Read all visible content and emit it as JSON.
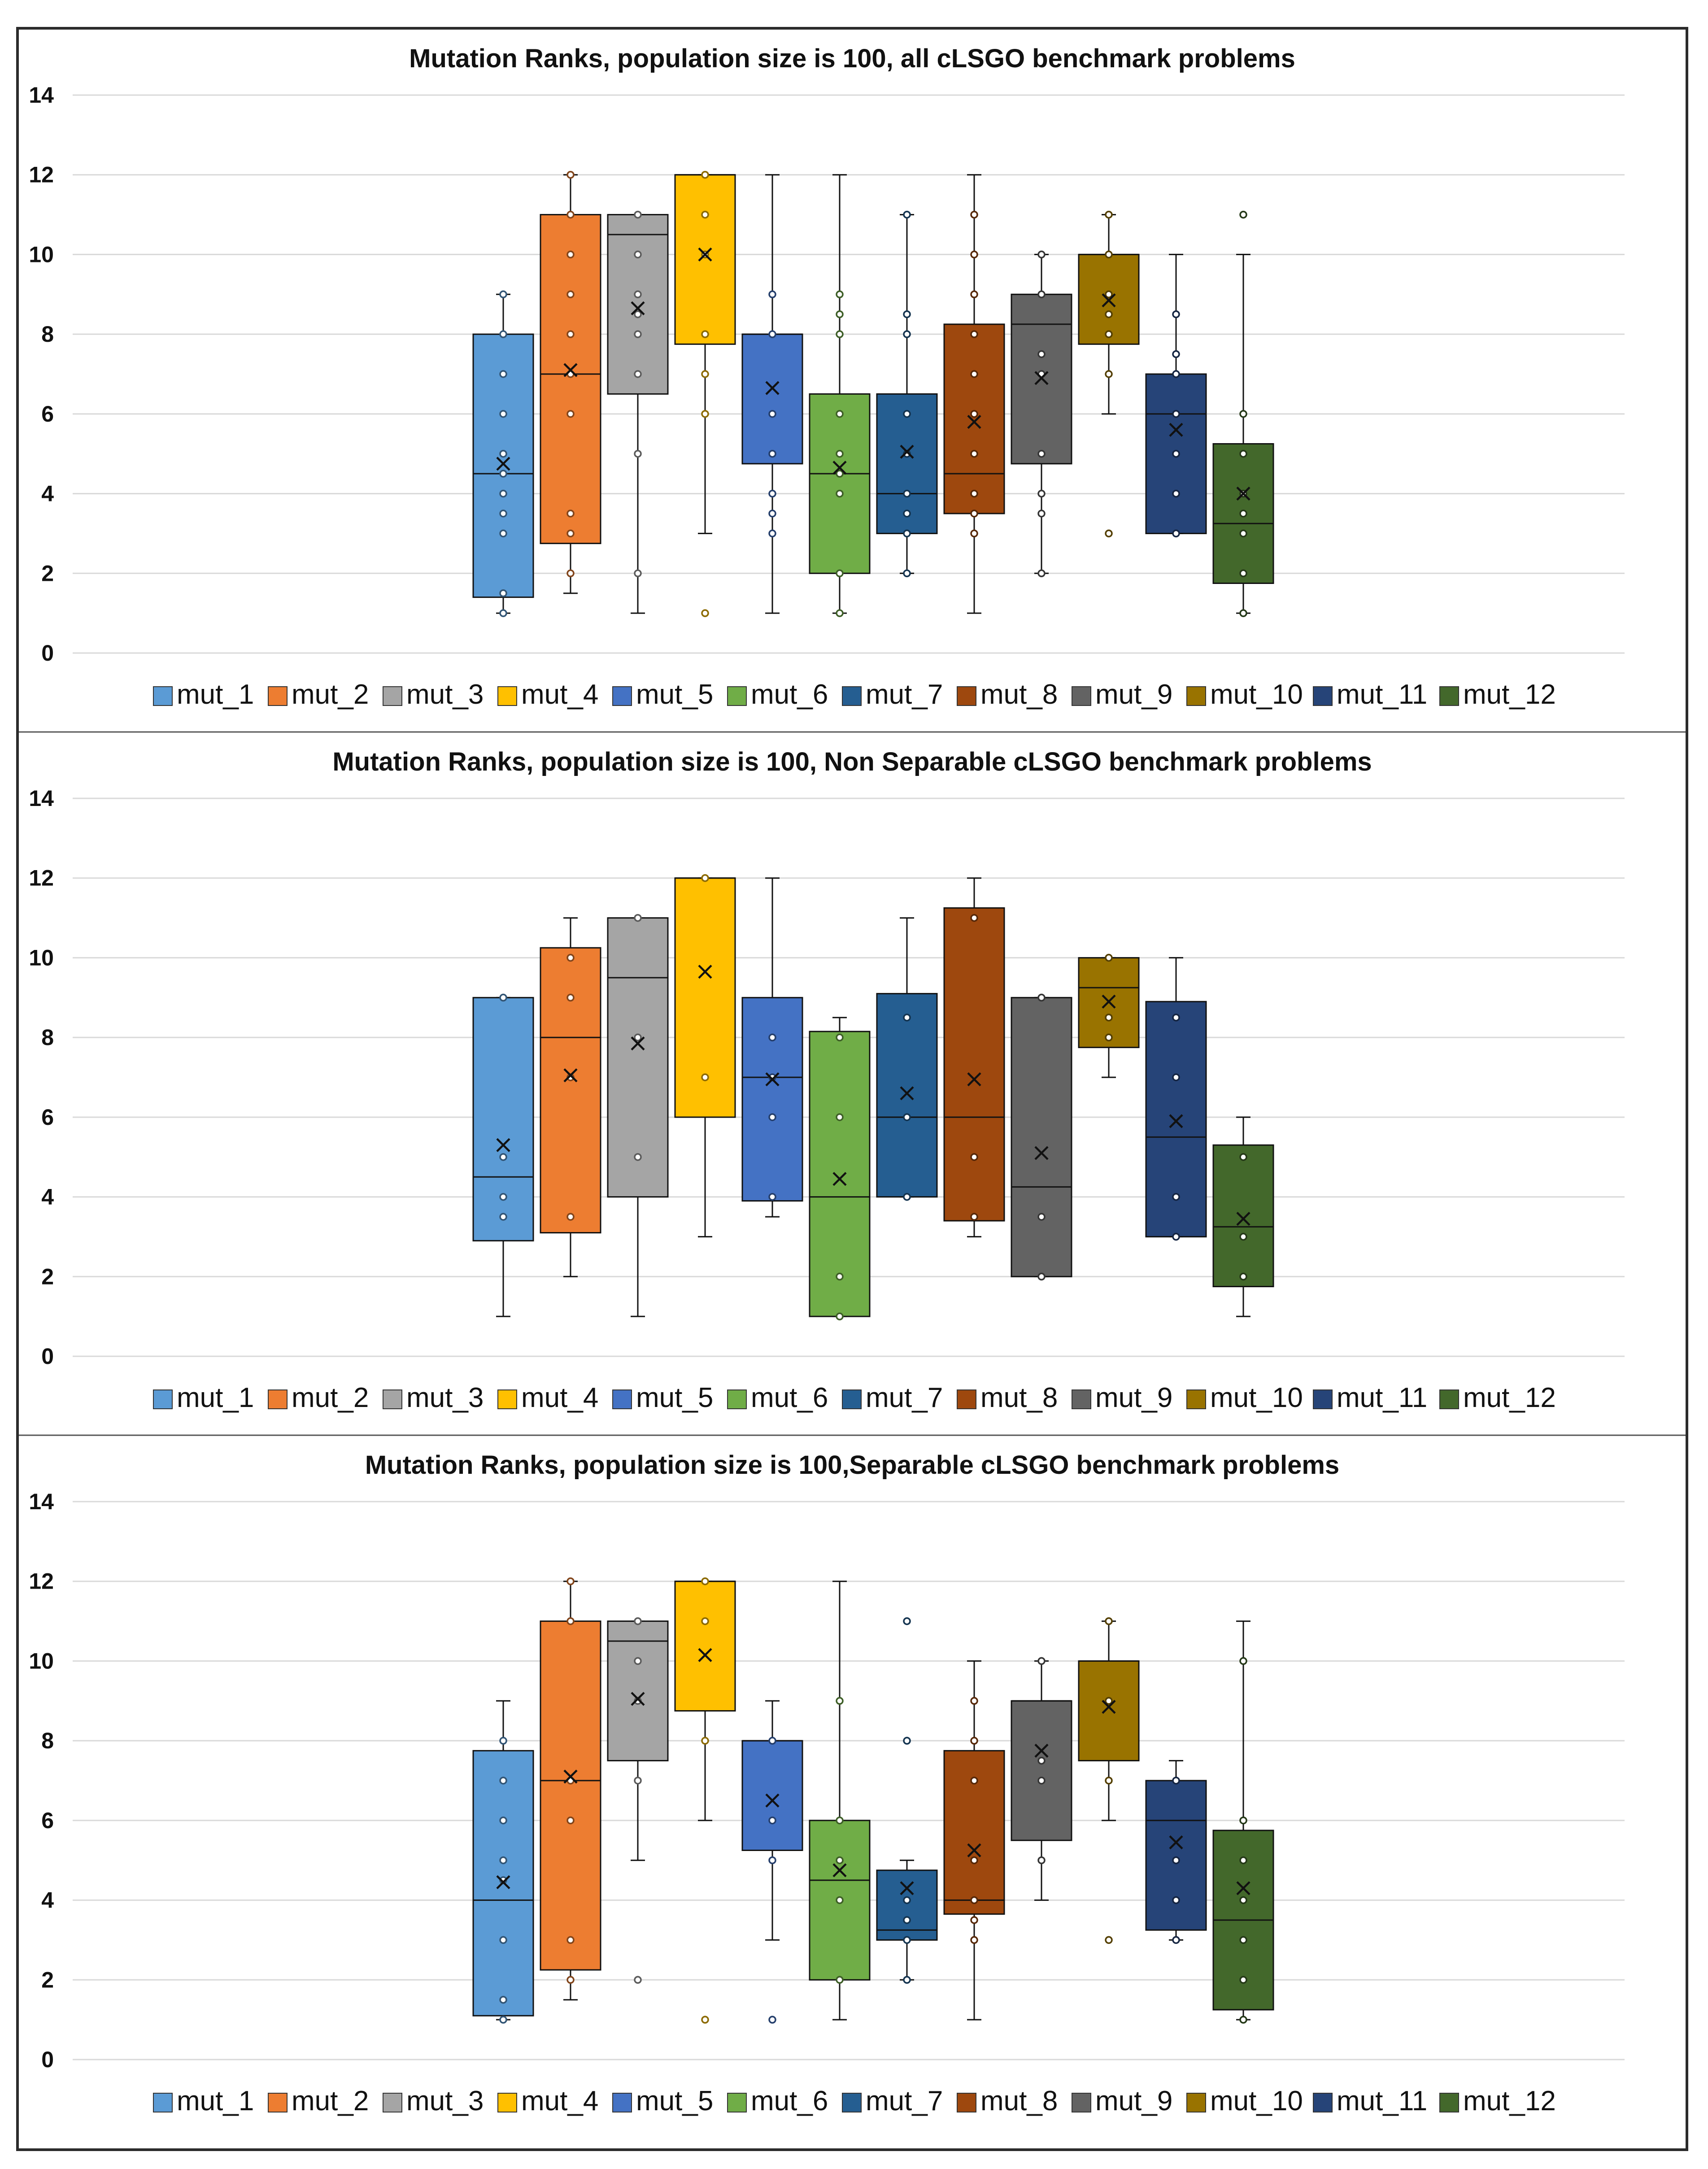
{
  "chart_data": [
    {
      "type": "box",
      "title": "Mutation Ranks, population size is 100, all cLSGO benchmark problems",
      "ylim": [
        0,
        14
      ],
      "yticks": [
        0,
        2,
        4,
        6,
        8,
        10,
        12,
        14
      ],
      "categories": [
        "mut_1",
        "mut_2",
        "mut_3",
        "mut_4",
        "mut_5",
        "mut_6",
        "mut_7",
        "mut_8",
        "mut_9",
        "mut_10",
        "mut_11",
        "mut_12"
      ],
      "series": [
        {
          "name": "mut_1",
          "q1": 1.4,
          "median": 4.5,
          "q3": 8,
          "whisker_low": 1,
          "whisker_high": 9,
          "mean": 4.75,
          "points": [
            1,
            1.5,
            3,
            3.5,
            4,
            4.5,
            5,
            6,
            7,
            8,
            9
          ]
        },
        {
          "name": "mut_2",
          "q1": 2.75,
          "median": 7,
          "q3": 11,
          "whisker_low": 1.5,
          "whisker_high": 12,
          "mean": 7.1,
          "points": [
            2,
            3,
            3.5,
            6,
            7,
            8,
            9,
            10,
            11,
            12
          ]
        },
        {
          "name": "mut_3",
          "q1": 6.5,
          "median": 10.5,
          "q3": 11,
          "whisker_low": 1,
          "whisker_high": 11,
          "mean": 8.65,
          "points": [
            2,
            5,
            7,
            8,
            8.5,
            9,
            10,
            11
          ]
        },
        {
          "name": "mut_4",
          "q1": 7.75,
          "median": 12,
          "q3": 12,
          "whisker_low": 3,
          "whisker_high": 12,
          "mean": 10,
          "points": [
            1,
            6,
            7,
            8,
            10,
            11,
            12
          ]
        },
        {
          "name": "mut_5",
          "q1": 4.75,
          "median": 8,
          "q3": 8,
          "whisker_low": 1,
          "whisker_high": 12,
          "mean": 6.65,
          "points": [
            3,
            3.5,
            4,
            5,
            6,
            8,
            9
          ]
        },
        {
          "name": "mut_6",
          "q1": 2,
          "median": 4.5,
          "q3": 6.5,
          "whisker_low": 1,
          "whisker_high": 12,
          "mean": 4.65,
          "points": [
            1,
            2,
            4,
            4.5,
            5,
            6,
            8,
            8.5,
            9
          ]
        },
        {
          "name": "mut_7",
          "q1": 3,
          "median": 4,
          "q3": 6.5,
          "whisker_low": 2,
          "whisker_high": 11,
          "mean": 5.05,
          "points": [
            2,
            3,
            3.5,
            4,
            5,
            6,
            8,
            8.5,
            11
          ]
        },
        {
          "name": "mut_8",
          "q1": 3.5,
          "median": 4.5,
          "q3": 8.25,
          "whisker_low": 1,
          "whisker_high": 12,
          "mean": 5.8,
          "points": [
            3,
            3.5,
            4,
            5,
            6,
            7,
            8,
            9,
            10,
            11
          ]
        },
        {
          "name": "mut_9",
          "q1": 4.75,
          "median": 8.25,
          "q3": 9,
          "whisker_low": 2,
          "whisker_high": 10,
          "mean": 6.9,
          "points": [
            2,
            3.5,
            4,
            5,
            7,
            7.5,
            9,
            10
          ]
        },
        {
          "name": "mut_10",
          "q1": 7.75,
          "median": 10,
          "q3": 10,
          "whisker_low": 6,
          "whisker_high": 11,
          "mean": 8.85,
          "points": [
            3,
            7,
            8,
            8.5,
            9,
            10,
            11
          ]
        },
        {
          "name": "mut_11",
          "q1": 3,
          "median": 6,
          "q3": 7,
          "whisker_low": 3,
          "whisker_high": 10,
          "mean": 5.6,
          "points": [
            3,
            4,
            5,
            6,
            7,
            7.5,
            8.5
          ]
        },
        {
          "name": "mut_12",
          "q1": 1.75,
          "median": 3.25,
          "q3": 5.25,
          "whisker_low": 1,
          "whisker_high": 10,
          "mean": 4,
          "points": [
            1,
            2,
            3,
            3.5,
            4,
            5,
            6,
            11
          ]
        }
      ]
    },
    {
      "type": "box",
      "title": "Mutation Ranks, population size is 100, Non Separable cLSGO benchmark problems",
      "ylim": [
        0,
        14
      ],
      "yticks": [
        0,
        2,
        4,
        6,
        8,
        10,
        12,
        14
      ],
      "categories": [
        "mut_1",
        "mut_2",
        "mut_3",
        "mut_4",
        "mut_5",
        "mut_6",
        "mut_7",
        "mut_8",
        "mut_9",
        "mut_10",
        "mut_11",
        "mut_12"
      ],
      "series": [
        {
          "name": "mut_1",
          "q1": 2.9,
          "median": 4.5,
          "q3": 9,
          "whisker_low": 1,
          "whisker_high": 9,
          "mean": 5.3,
          "points": [
            3.5,
            4,
            5,
            9
          ]
        },
        {
          "name": "mut_2",
          "q1": 3.1,
          "median": 8,
          "q3": 10.25,
          "whisker_low": 2,
          "whisker_high": 11,
          "mean": 7.05,
          "points": [
            3.5,
            7,
            9,
            10
          ]
        },
        {
          "name": "mut_3",
          "q1": 4,
          "median": 9.5,
          "q3": 11,
          "whisker_low": 1,
          "whisker_high": 11,
          "mean": 7.85,
          "points": [
            5,
            8,
            11
          ]
        },
        {
          "name": "mut_4",
          "q1": 6,
          "median": 12,
          "q3": 12,
          "whisker_low": 3,
          "whisker_high": 12,
          "mean": 9.65,
          "points": [
            7,
            12
          ]
        },
        {
          "name": "mut_5",
          "q1": 3.9,
          "median": 7,
          "q3": 9,
          "whisker_low": 3.5,
          "whisker_high": 12,
          "mean": 6.95,
          "points": [
            4,
            6,
            7,
            8
          ]
        },
        {
          "name": "mut_6",
          "q1": 1,
          "median": 4,
          "q3": 8.15,
          "whisker_low": 1,
          "whisker_high": 8.5,
          "mean": 4.45,
          "points": [
            1,
            2,
            6,
            8
          ]
        },
        {
          "name": "mut_7",
          "q1": 4,
          "median": 6,
          "q3": 9.1,
          "whisker_low": 4,
          "whisker_high": 11,
          "mean": 6.6,
          "points": [
            4,
            6,
            8.5
          ]
        },
        {
          "name": "mut_8",
          "q1": 3.4,
          "median": 6,
          "q3": 11.25,
          "whisker_low": 3,
          "whisker_high": 12,
          "mean": 6.95,
          "points": [
            3.5,
            5,
            11
          ]
        },
        {
          "name": "mut_9",
          "q1": 2,
          "median": 4.25,
          "q3": 9,
          "whisker_low": 2,
          "whisker_high": 9,
          "mean": 5.1,
          "points": [
            2,
            3.5,
            9
          ]
        },
        {
          "name": "mut_10",
          "q1": 7.75,
          "median": 9.25,
          "q3": 10,
          "whisker_low": 7,
          "whisker_high": 10,
          "mean": 8.9,
          "points": [
            8,
            8.5,
            10
          ]
        },
        {
          "name": "mut_11",
          "q1": 3,
          "median": 5.5,
          "q3": 8.9,
          "whisker_low": 3,
          "whisker_high": 10,
          "mean": 5.9,
          "points": [
            3,
            4,
            7,
            8.5
          ]
        },
        {
          "name": "mut_12",
          "q1": 1.75,
          "median": 3.25,
          "q3": 5.3,
          "whisker_low": 1,
          "whisker_high": 6,
          "mean": 3.45,
          "points": [
            2,
            3,
            5
          ]
        }
      ]
    },
    {
      "type": "box",
      "title": "Mutation Ranks, population size is 100,Separable cLSGO benchmark problems",
      "ylim": [
        0,
        14
      ],
      "yticks": [
        0,
        2,
        4,
        6,
        8,
        10,
        12,
        14
      ],
      "categories": [
        "mut_1",
        "mut_2",
        "mut_3",
        "mut_4",
        "mut_5",
        "mut_6",
        "mut_7",
        "mut_8",
        "mut_9",
        "mut_10",
        "mut_11",
        "mut_12"
      ],
      "series": [
        {
          "name": "mut_1",
          "q1": 1.1,
          "median": 4,
          "q3": 7.75,
          "whisker_low": 1,
          "whisker_high": 9,
          "mean": 4.45,
          "points": [
            1,
            1.5,
            3,
            4.5,
            5,
            6,
            7,
            8
          ]
        },
        {
          "name": "mut_2",
          "q1": 2.25,
          "median": 7,
          "q3": 11,
          "whisker_low": 1.5,
          "whisker_high": 12,
          "mean": 7.1,
          "points": [
            2,
            3,
            6,
            7,
            11,
            12
          ]
        },
        {
          "name": "mut_3",
          "q1": 7.5,
          "median": 10.5,
          "q3": 11,
          "whisker_low": 5,
          "whisker_high": 11,
          "mean": 9.05,
          "points": [
            2,
            7,
            9,
            10,
            11
          ]
        },
        {
          "name": "mut_4",
          "q1": 8.75,
          "median": 12,
          "q3": 12,
          "whisker_low": 6,
          "whisker_high": 12,
          "mean": 10.15,
          "points": [
            1,
            8,
            11,
            12
          ]
        },
        {
          "name": "mut_5",
          "q1": 5.25,
          "median": 8,
          "q3": 8,
          "whisker_low": 3,
          "whisker_high": 9,
          "mean": 6.5,
          "points": [
            1,
            5,
            6,
            8
          ]
        },
        {
          "name": "mut_6",
          "q1": 2,
          "median": 4.5,
          "q3": 6,
          "whisker_low": 1,
          "whisker_high": 12,
          "mean": 4.75,
          "points": [
            2,
            4,
            5,
            6,
            9
          ]
        },
        {
          "name": "mut_7",
          "q1": 3,
          "median": 3.25,
          "q3": 4.75,
          "whisker_low": 2,
          "whisker_high": 5,
          "mean": 4.3,
          "points": [
            2,
            3,
            3.5,
            4,
            8,
            11
          ]
        },
        {
          "name": "mut_8",
          "q1": 3.65,
          "median": 4,
          "q3": 7.75,
          "whisker_low": 1,
          "whisker_high": 10,
          "mean": 5.25,
          "points": [
            3,
            3.5,
            4,
            5,
            7,
            8,
            9
          ]
        },
        {
          "name": "mut_9",
          "q1": 5.5,
          "median": 9,
          "q3": 9,
          "whisker_low": 4,
          "whisker_high": 10,
          "mean": 7.75,
          "points": [
            5,
            7,
            7.5,
            10
          ]
        },
        {
          "name": "mut_10",
          "q1": 7.5,
          "median": 10,
          "q3": 10,
          "whisker_low": 6,
          "whisker_high": 11,
          "mean": 8.85,
          "points": [
            3,
            7,
            9,
            11
          ]
        },
        {
          "name": "mut_11",
          "q1": 3.25,
          "median": 6,
          "q3": 7,
          "whisker_low": 3,
          "whisker_high": 7.5,
          "mean": 5.45,
          "points": [
            3,
            4,
            5,
            7
          ]
        },
        {
          "name": "mut_12",
          "q1": 1.25,
          "median": 3.5,
          "q3": 5.75,
          "whisker_low": 1,
          "whisker_high": 11,
          "mean": 4.3,
          "points": [
            1,
            2,
            3,
            4,
            5,
            6,
            10
          ]
        }
      ]
    }
  ],
  "legend": [
    "mut_1",
    "mut_2",
    "mut_3",
    "mut_4",
    "mut_5",
    "mut_6",
    "mut_7",
    "mut_8",
    "mut_9",
    "mut_10",
    "mut_11",
    "mut_12"
  ],
  "colors": [
    "#5B9BD5",
    "#ED7D31",
    "#A5A5A5",
    "#FFC000",
    "#4472C4",
    "#70AD47",
    "#255E91",
    "#9E480E",
    "#636363",
    "#997300",
    "#264478",
    "#43682B"
  ]
}
